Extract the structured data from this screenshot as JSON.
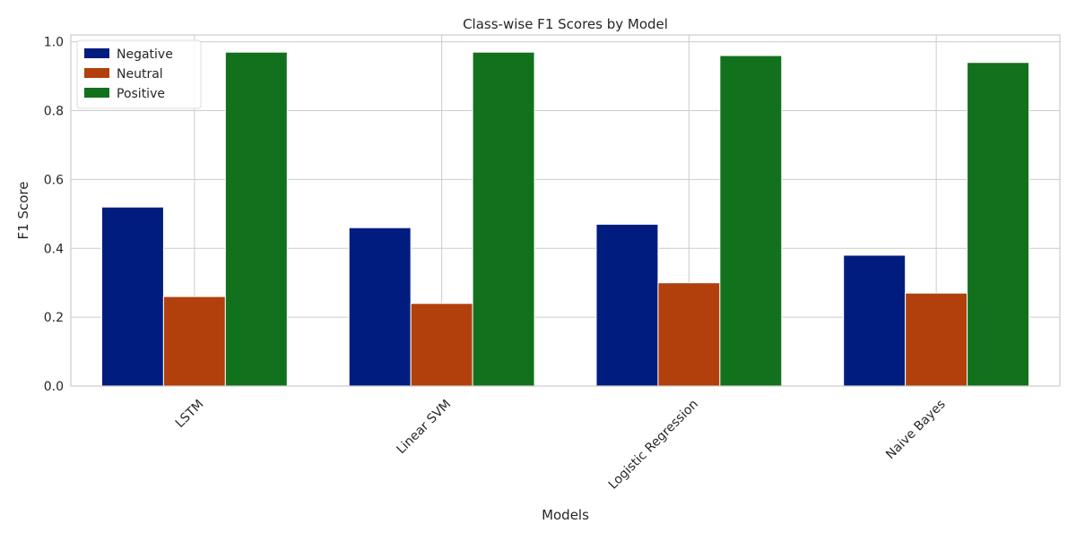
{
  "chart_data": {
    "type": "bar",
    "title": "Class-wise F1 Scores by Model",
    "xlabel": "Models",
    "ylabel": "F1 Score",
    "categories": [
      "LSTM",
      "Linear SVM",
      "Logistic Regression",
      "Naive Bayes"
    ],
    "series": [
      {
        "name": "Negative",
        "color": "#001c7f",
        "values": [
          0.52,
          0.46,
          0.47,
          0.38
        ]
      },
      {
        "name": "Neutral",
        "color": "#b1400d",
        "values": [
          0.26,
          0.24,
          0.3,
          0.27
        ]
      },
      {
        "name": "Positive",
        "color": "#12711c",
        "values": [
          0.97,
          0.97,
          0.96,
          0.94
        ]
      }
    ],
    "ylim": [
      0,
      1.02
    ],
    "yticks": [
      "0.0",
      "0.2",
      "0.4",
      "0.6",
      "0.8",
      "1.0"
    ],
    "grid": true,
    "legend_position": "top-left",
    "x_tick_rotation_deg": 45
  }
}
